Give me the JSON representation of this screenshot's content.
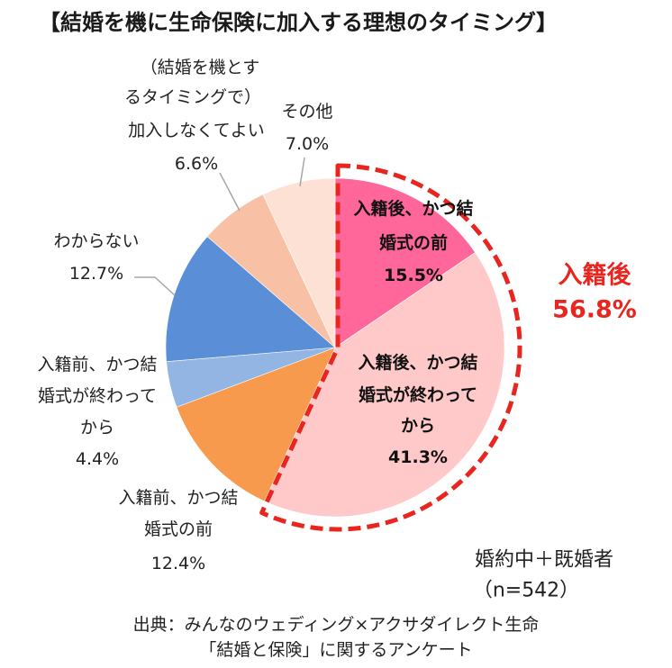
{
  "chart_data": {
    "type": "pie",
    "title": "【結婚を機に生命保険に加入する理想のタイミング】",
    "slices": [
      {
        "label_lines": [
          "入籍後、かつ結",
          "婚式の前"
        ],
        "value": 15.5,
        "value_label": "15.5%",
        "color": "#FF6699"
      },
      {
        "label_lines": [
          "入籍後、かつ結",
          "婚式が終わって",
          "から"
        ],
        "value": 41.3,
        "value_label": "41.3%",
        "color": "#FFC9C9"
      },
      {
        "label_lines": [
          "入籍前、かつ結",
          "婚式の前"
        ],
        "value": 12.4,
        "value_label": "12.4%",
        "color": "#F79A4E"
      },
      {
        "label_lines": [
          "入籍前、かつ結",
          "婚式が終わって",
          "から"
        ],
        "value": 4.4,
        "value_label": "4.4%",
        "color": "#92B5E3"
      },
      {
        "label_lines": [
          "わからない"
        ],
        "value": 12.7,
        "value_label": "12.7%",
        "color": "#5A8ED6"
      },
      {
        "label_lines": [
          "（結婚を機とす",
          "るタイミングで）",
          "加入しなくてよい"
        ],
        "value": 6.6,
        "value_label": "6.6%",
        "color": "#F8C1A5"
      },
      {
        "label_lines": [
          "その他"
        ],
        "value": 7.0,
        "value_label": "7.0%",
        "color": "#FDE1D5"
      }
    ],
    "callout": {
      "label": "入籍後",
      "value_label": "56.8%",
      "color": "#E8251F"
    }
  },
  "note": {
    "lines": [
      "婚約中＋既婚者",
      "（n=542）"
    ]
  },
  "source": {
    "lines": [
      "出典：みんなのウェディング×アクサダイレクト生命",
      "「結婚と保険」に関するアンケート"
    ]
  }
}
